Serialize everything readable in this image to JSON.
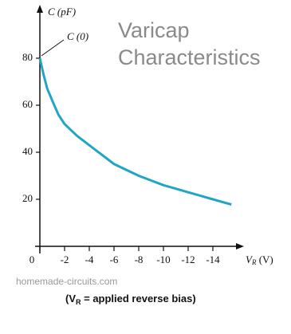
{
  "chart_data": {
    "type": "line",
    "title": [
      "Varicap",
      "Characteristics"
    ],
    "y_label": "C (pF)",
    "annotation": "C (0)",
    "x_label": [
      "V",
      "R",
      " (V)"
    ],
    "watermark": "homemade-circuits.com",
    "caption": [
      "(V",
      "R",
      " = applied reverse bias)"
    ],
    "x": [
      0,
      -0.3,
      -0.6,
      -1,
      -1.5,
      -2,
      -3,
      -4,
      -5,
      -6,
      -7,
      -8,
      -9,
      -10,
      -11,
      -12,
      -13,
      -14,
      -15,
      -15.5
    ],
    "series": [
      {
        "name": "C",
        "color": "#1fa6c6",
        "values": [
          80,
          73,
          67,
          62,
          56,
          52,
          47,
          43,
          39,
          35,
          32.5,
          30,
          28,
          26,
          24.5,
          23,
          21.5,
          20,
          18.5,
          17.8
        ]
      }
    ],
    "xlim": [
      0,
      -16
    ],
    "ylim": [
      0,
      100
    ],
    "xticks": [
      0,
      -2,
      -4,
      -6,
      -8,
      -10,
      -12,
      -14
    ],
    "yticks": [
      20,
      40,
      60,
      80
    ]
  }
}
